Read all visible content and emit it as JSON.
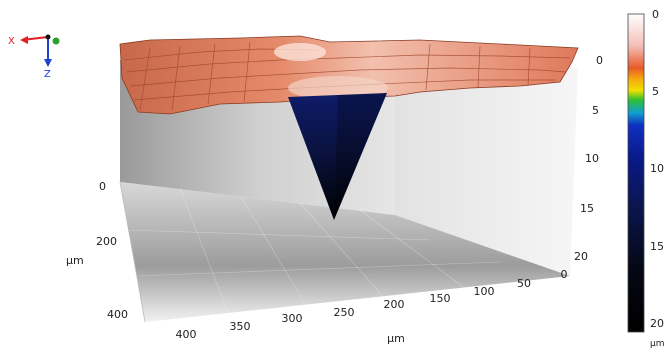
{
  "chart_data": {
    "type": "surface3d",
    "title": "",
    "axes": {
      "x": {
        "label": "µm",
        "ticks": [
          "400",
          "350",
          "300",
          "250",
          "200",
          "150",
          "100",
          "50",
          "0"
        ]
      },
      "y": {
        "label": "µm",
        "ticks": [
          "0",
          "200",
          "400"
        ]
      },
      "z": {
        "label": "",
        "ticks": [
          "0",
          "5",
          "10",
          "15",
          "20"
        ]
      }
    },
    "orientation_gizmo": {
      "x_label": "X",
      "z_label": "Z",
      "colors": {
        "x": "#e02020",
        "y": "#2aa02a",
        "z": "#2040d0"
      }
    },
    "colorbar": {
      "unit": "µm",
      "ticks": [
        "0",
        "5",
        "10",
        "15",
        "20"
      ],
      "stops": [
        {
          "offset": 0.0,
          "color": "#ffffff"
        },
        {
          "offset": 0.1,
          "color": "#f3c0b8"
        },
        {
          "offset": 0.17,
          "color": "#e85a2a"
        },
        {
          "offset": 0.2,
          "color": "#f4a010"
        },
        {
          "offset": 0.24,
          "color": "#f0e000"
        },
        {
          "offset": 0.27,
          "color": "#30c030"
        },
        {
          "offset": 0.31,
          "color": "#10a0d0"
        },
        {
          "offset": 0.35,
          "color": "#1030c0"
        },
        {
          "offset": 0.45,
          "color": "#0a1a8a"
        },
        {
          "offset": 0.6,
          "color": "#0b1650"
        },
        {
          "offset": 0.8,
          "color": "#050814"
        },
        {
          "offset": 1.0,
          "color": "#000000"
        }
      ]
    },
    "surface": {
      "top_color": "#e07a58",
      "highlight_color": "#fbe2d8",
      "pit_color": "#0b1650",
      "pit_tip_color": "#000000"
    }
  }
}
